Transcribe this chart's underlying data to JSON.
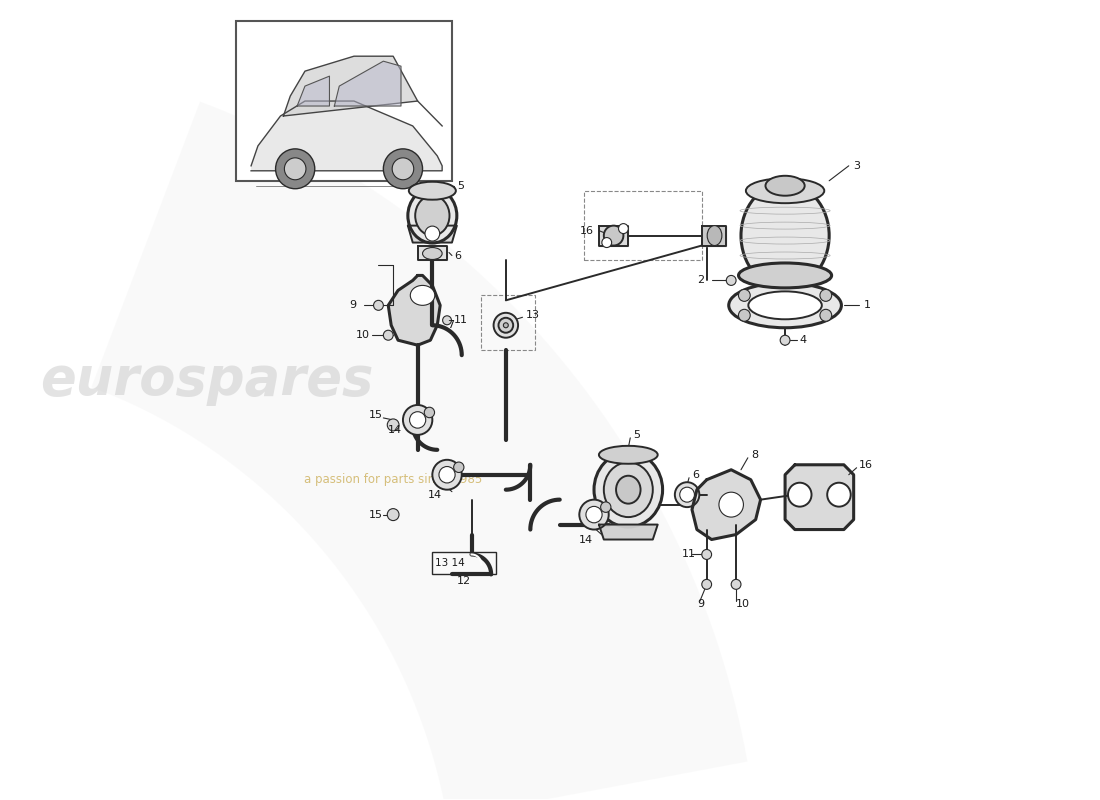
{
  "background_color": "#ffffff",
  "line_color": "#2a2a2a",
  "label_color": "#1a1a1a",
  "watermark1": "eurospares",
  "watermark2": "a passion for parts since 1985",
  "fig_width": 11.0,
  "fig_height": 8.0,
  "dpi": 100,
  "wm_arc_color": "#e8e8e8",
  "wm_text_color": "#c8c8c8",
  "wm_sub_color": "#c8a84a"
}
